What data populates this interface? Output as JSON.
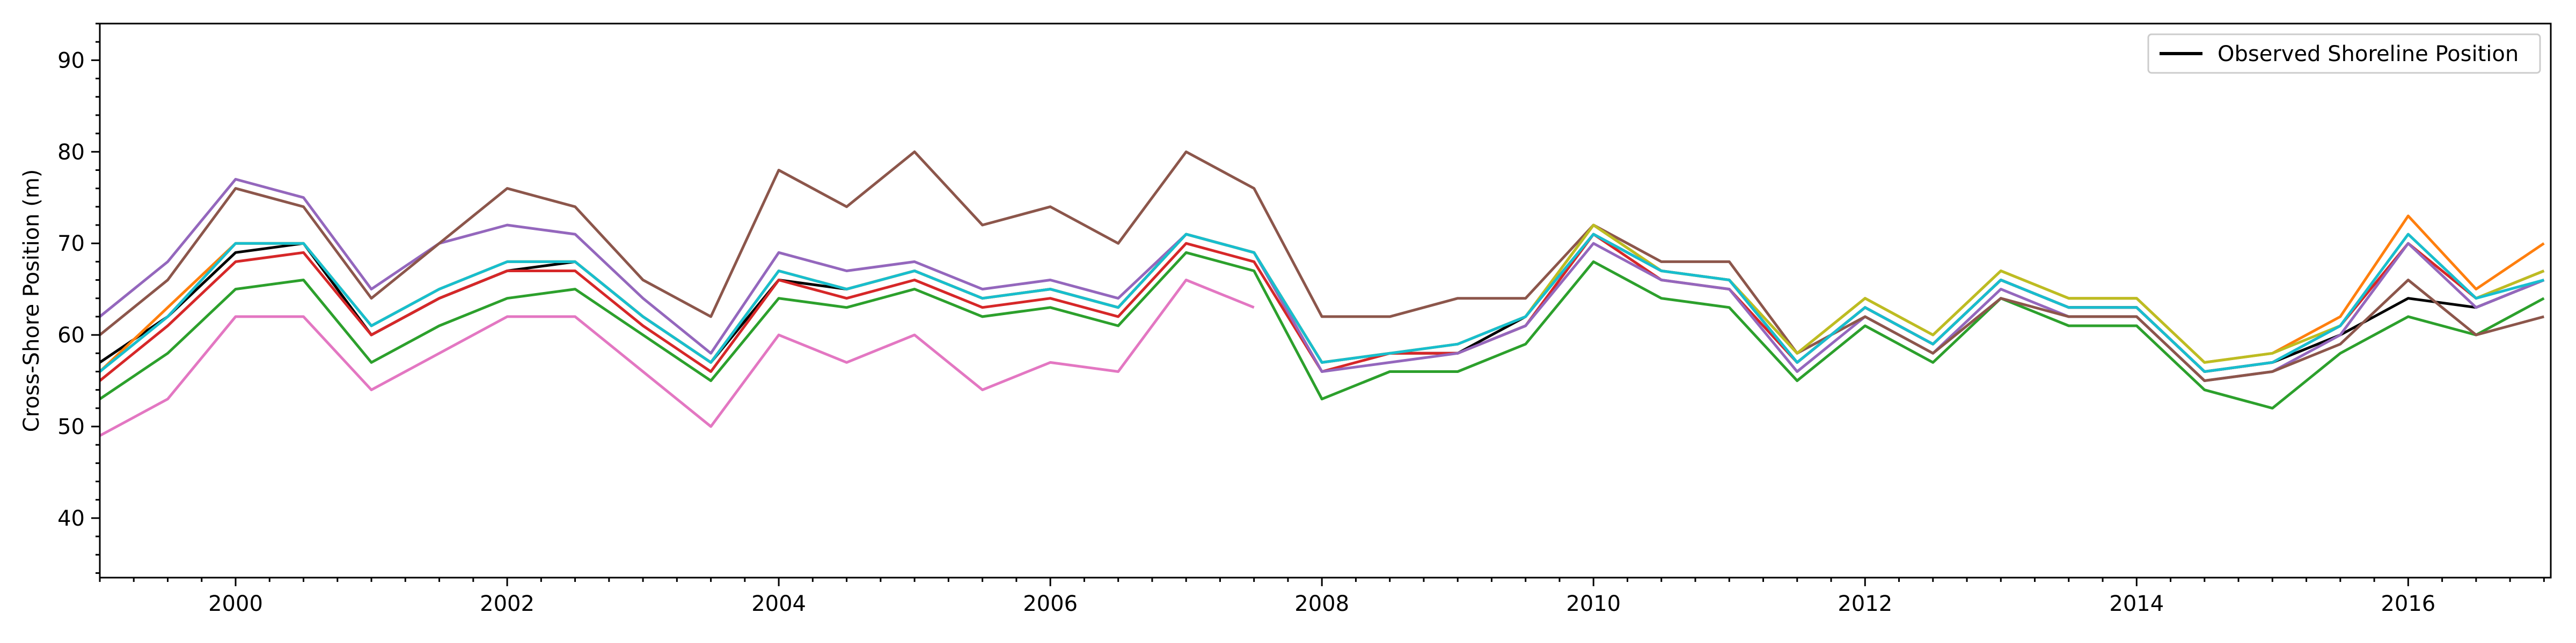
{
  "chart_data": {
    "type": "line",
    "title": "",
    "xlabel": "",
    "ylabel": "Cross-Shore Position (m)",
    "x_tick_labels": [
      "2000",
      "2002",
      "2004",
      "2006",
      "2008",
      "2010",
      "2012",
      "2014",
      "2016"
    ],
    "x_tick_years": [
      2000,
      2002,
      2004,
      2006,
      2008,
      2010,
      2012,
      2014,
      2016
    ],
    "y_tick_labels": [
      "40",
      "50",
      "60",
      "70",
      "80",
      "90"
    ],
    "y_tick_values": [
      40,
      50,
      60,
      70,
      80,
      90
    ],
    "xlim": [
      1999.0,
      2017.05
    ],
    "ylim": [
      33.5,
      94
    ],
    "grid": false,
    "legend": {
      "position": "top-right",
      "entries": [
        "Observed Shoreline Position"
      ]
    },
    "series": [
      {
        "name": "Observed Shoreline Position",
        "color": "#000000",
        "x": [
          1999.0,
          1999.5,
          2000.0,
          2000.5,
          2001.0,
          2001.5,
          2002.0,
          2002.5,
          2003.0,
          2003.5,
          2004.0,
          2004.5,
          2005.0,
          2005.5,
          2006.0,
          2006.5,
          2007.0,
          2007.5,
          2008.0,
          2008.5,
          2009.0,
          2009.5,
          2010.0,
          2010.5,
          2011.0,
          2011.5,
          2012.0,
          2012.5,
          2013.0,
          2013.5,
          2014.0,
          2014.5,
          2015.0,
          2015.5,
          2016.0,
          2016.5,
          2017.0
        ],
        "y": [
          57,
          62,
          69,
          70,
          60,
          64,
          67,
          68,
          62,
          57,
          66,
          65,
          67,
          64,
          65,
          63,
          71,
          69,
          57,
          58,
          58,
          62,
          71,
          67,
          66,
          57,
          63,
          59,
          66,
          63,
          63,
          56,
          57,
          60,
          64,
          63,
          66
        ]
      },
      {
        "color": "#ff7f0e",
        "x": [
          1999.0,
          1999.5,
          2000.0,
          2000.5,
          2001.0,
          2001.5,
          2002.0,
          2002.5,
          2003.0,
          2003.5,
          2004.0,
          2004.5,
          2005.0,
          2005.5,
          2006.0,
          2006.5,
          2007.0,
          2007.5,
          2008.0,
          2008.5,
          2009.0,
          2009.5,
          2010.0,
          2010.5,
          2011.0,
          2011.5,
          2012.0,
          2012.5,
          2013.0,
          2013.5,
          2014.0,
          2014.5,
          2015.0,
          2015.5,
          2016.0,
          2016.5,
          2017.0
        ],
        "y": [
          56,
          63,
          70,
          70,
          61,
          65,
          68,
          68,
          62,
          57,
          67,
          65,
          67,
          64,
          65,
          63,
          71,
          69,
          57,
          58,
          59,
          62,
          72,
          67,
          66,
          58,
          64,
          60,
          67,
          64,
          64,
          57,
          58,
          62,
          73,
          65,
          70
        ]
      },
      {
        "color": "#2ca02c",
        "x": [
          1999.0,
          1999.5,
          2000.0,
          2000.5,
          2001.0,
          2001.5,
          2002.0,
          2002.5,
          2003.0,
          2003.5,
          2004.0,
          2004.5,
          2005.0,
          2005.5,
          2006.0,
          2006.5,
          2007.0,
          2007.5,
          2008.0,
          2008.5,
          2009.0,
          2009.5,
          2010.0,
          2010.5,
          2011.0,
          2011.5,
          2012.0,
          2012.5,
          2013.0,
          2013.5,
          2014.0,
          2014.5,
          2015.0,
          2015.5,
          2016.0,
          2016.5,
          2017.0
        ],
        "y": [
          53,
          58,
          65,
          66,
          57,
          61,
          64,
          65,
          60,
          55,
          64,
          63,
          65,
          62,
          63,
          61,
          69,
          67,
          53,
          56,
          56,
          59,
          68,
          64,
          63,
          55,
          61,
          57,
          64,
          61,
          61,
          54,
          52,
          58,
          62,
          60,
          64
        ]
      },
      {
        "color": "#d62728",
        "x": [
          1999.0,
          1999.5,
          2000.0,
          2000.5,
          2001.0,
          2001.5,
          2002.0,
          2002.5,
          2003.0,
          2003.5,
          2004.0,
          2004.5,
          2005.0,
          2005.5,
          2006.0,
          2006.5,
          2007.0,
          2007.5,
          2008.0,
          2008.5,
          2009.0,
          2009.5,
          2010.0,
          2010.5,
          2011.0,
          2011.5,
          2012.0,
          2012.5,
          2013.0,
          2013.5,
          2014.0,
          2014.5,
          2015.0,
          2015.5,
          2016.0,
          2016.5,
          2017.0
        ],
        "y": [
          55,
          61,
          68,
          69,
          60,
          64,
          67,
          67,
          61,
          56,
          66,
          64,
          66,
          63,
          64,
          62,
          70,
          68,
          56,
          58,
          58,
          61,
          71,
          66,
          65,
          57,
          63,
          59,
          66,
          63,
          63,
          56,
          57,
          61,
          70,
          64,
          67
        ]
      },
      {
        "color": "#9467bd",
        "x": [
          1999.0,
          1999.5,
          2000.0,
          2000.5,
          2001.0,
          2001.5,
          2002.0,
          2002.5,
          2003.0,
          2003.5,
          2004.0,
          2004.5,
          2005.0,
          2005.5,
          2006.0,
          2006.5,
          2007.0,
          2007.5,
          2008.0,
          2008.5,
          2009.0,
          2009.5,
          2010.0,
          2010.5,
          2011.0,
          2011.5,
          2012.0,
          2012.5,
          2013.0,
          2013.5,
          2014.0,
          2014.5,
          2015.0,
          2015.5,
          2016.0,
          2016.5,
          2017.0
        ],
        "y": [
          62,
          68,
          77,
          75,
          65,
          70,
          72,
          71,
          64,
          58,
          69,
          67,
          68,
          65,
          66,
          64,
          71,
          69,
          56,
          57,
          58,
          61,
          70,
          66,
          65,
          56,
          62,
          58,
          65,
          62,
          62,
          55,
          56,
          60,
          70,
          63,
          66
        ]
      },
      {
        "color": "#8c564b",
        "x": [
          1999.0,
          1999.5,
          2000.0,
          2000.5,
          2001.0,
          2001.5,
          2002.0,
          2002.5,
          2003.0,
          2003.5,
          2004.0,
          2004.5,
          2005.0,
          2005.5,
          2006.0,
          2006.5,
          2007.0,
          2007.5,
          2008.0,
          2008.5,
          2009.0,
          2009.5,
          2010.0,
          2010.5,
          2011.0,
          2011.5,
          2012.0,
          2012.5,
          2013.0,
          2013.5,
          2014.0,
          2014.5,
          2015.0,
          2015.5,
          2016.0,
          2016.5,
          2017.0
        ],
        "y": [
          60,
          66,
          76,
          74,
          64,
          70,
          76,
          74,
          66,
          62,
          78,
          74,
          80,
          72,
          74,
          70,
          80,
          76,
          62,
          62,
          64,
          64,
          72,
          68,
          68,
          58,
          62,
          58,
          64,
          62,
          62,
          55,
          56,
          59,
          66,
          60,
          62
        ]
      },
      {
        "color": "#e377c2",
        "x": [
          1999.0,
          1999.5,
          2000.0,
          2000.5,
          2001.0,
          2001.5,
          2002.0,
          2002.5,
          2003.0,
          2003.5,
          2004.0,
          2004.5,
          2005.0,
          2005.5,
          2006.0,
          2006.5,
          2007.0,
          2007.5
        ],
        "y": [
          49,
          53,
          62,
          62,
          54,
          58,
          62,
          62,
          56,
          50,
          60,
          57,
          60,
          54,
          57,
          56,
          66,
          63
        ]
      },
      {
        "color": "#bcbd22",
        "x": [
          1999.0,
          1999.5,
          2000.0,
          2000.5,
          2001.0,
          2001.5,
          2002.0,
          2002.5,
          2003.0,
          2003.5,
          2004.0,
          2004.5,
          2005.0,
          2005.5,
          2006.0,
          2006.5,
          2007.0,
          2007.5,
          2008.0,
          2008.5,
          2009.0,
          2009.5,
          2010.0,
          2010.5,
          2011.0,
          2011.5,
          2012.0,
          2012.5,
          2013.0,
          2013.5,
          2014.0,
          2014.5,
          2015.0,
          2015.5,
          2016.0,
          2016.5,
          2017.0
        ],
        "y": [
          56,
          62,
          70,
          70,
          61,
          65,
          68,
          68,
          62,
          57,
          67,
          65,
          67,
          64,
          65,
          63,
          71,
          69,
          57,
          58,
          59,
          62,
          72,
          67,
          66,
          58,
          64,
          60,
          67,
          64,
          64,
          57,
          58,
          61,
          71,
          64,
          67
        ]
      },
      {
        "color": "#17becf",
        "x": [
          1999.0,
          1999.5,
          2000.0,
          2000.5,
          2001.0,
          2001.5,
          2002.0,
          2002.5,
          2003.0,
          2003.5,
          2004.0,
          2004.5,
          2005.0,
          2005.5,
          2006.0,
          2006.5,
          2007.0,
          2007.5,
          2008.0,
          2008.5,
          2009.0,
          2009.5,
          2010.0,
          2010.5,
          2011.0,
          2011.5,
          2012.0,
          2012.5,
          2013.0,
          2013.5,
          2014.0,
          2014.5,
          2015.0,
          2015.5,
          2016.0,
          2016.5,
          2017.0
        ],
        "y": [
          56,
          62,
          70,
          70,
          61,
          65,
          68,
          68,
          62,
          57,
          67,
          65,
          67,
          64,
          65,
          63,
          71,
          69,
          57,
          58,
          59,
          62,
          71,
          67,
          66,
          57,
          63,
          59,
          66,
          63,
          63,
          56,
          57,
          61,
          71,
          64,
          66
        ]
      }
    ]
  }
}
